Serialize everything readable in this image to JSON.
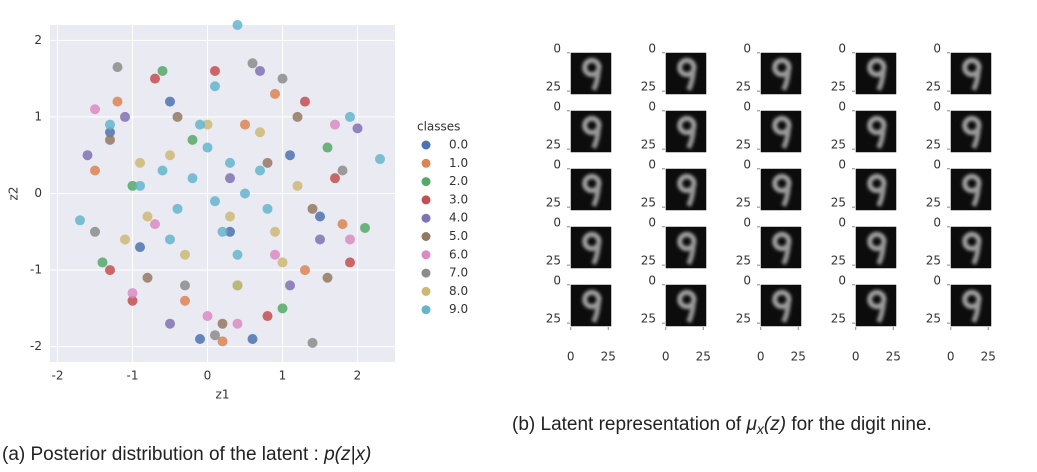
{
  "chart_data": [
    {
      "type": "scatter",
      "xlabel": "z1",
      "ylabel": "z2",
      "xlim": [
        -2.1,
        2.5
      ],
      "ylim": [
        -2.2,
        2.2
      ],
      "xticks": [
        -2,
        -1,
        0,
        1,
        2
      ],
      "yticks": [
        -2,
        -1,
        0,
        1,
        2
      ],
      "grid": true,
      "legend_title": "classes",
      "legend": "right",
      "series": [
        {
          "name": "0.0",
          "color": "#4c72b0",
          "x": [
            -1.3,
            0.6,
            -0.1,
            1.1,
            -0.5,
            0.3,
            -0.9,
            1.5
          ],
          "values": [
            0.8,
            -1.9,
            -1.9,
            0.5,
            1.2,
            -0.5,
            -0.7,
            -0.3
          ]
        },
        {
          "name": "1.0",
          "color": "#dd8452",
          "x": [
            0.2,
            1.8,
            -1.2,
            0.9,
            -0.3,
            1.3,
            -1.5,
            0.5
          ],
          "values": [
            -1.93,
            -0.4,
            1.2,
            1.3,
            -1.4,
            -1.0,
            0.3,
            0.9
          ]
        },
        {
          "name": "2.0",
          "color": "#55a868",
          "x": [
            2.1,
            -0.6,
            1.6,
            -1.4,
            0.4,
            -0.2,
            1.0,
            -1.0
          ],
          "values": [
            -0.45,
            1.6,
            0.6,
            -0.9,
            -1.2,
            0.7,
            -1.5,
            0.1
          ]
        },
        {
          "name": "3.0",
          "color": "#c44e52",
          "x": [
            -1.3,
            1.7,
            0.8,
            -0.7,
            1.3,
            -1.0,
            0.1,
            1.9
          ],
          "values": [
            -1.0,
            0.2,
            -1.6,
            1.5,
            1.2,
            -1.4,
            1.6,
            -0.9
          ]
        },
        {
          "name": "4.0",
          "color": "#8172b3",
          "x": [
            2.0,
            -1.6,
            0.7,
            -0.5,
            1.5,
            -1.1,
            0.3,
            1.1
          ],
          "values": [
            0.85,
            0.5,
            1.6,
            -1.7,
            -0.6,
            1.0,
            0.2,
            -1.2
          ]
        },
        {
          "name": "5.0",
          "color": "#937860",
          "x": [
            1.2,
            -0.8,
            1.6,
            -1.3,
            0.2,
            0.8,
            -0.4,
            1.4
          ],
          "values": [
            1.0,
            -1.1,
            -1.1,
            0.7,
            -1.7,
            0.4,
            1.0,
            -0.2
          ]
        },
        {
          "name": "6.0",
          "color": "#da8bc3",
          "x": [
            0.4,
            -1.0,
            1.7,
            -1.5,
            0.0,
            1.9,
            -0.7,
            0.9
          ],
          "values": [
            -1.7,
            -1.3,
            0.9,
            1.1,
            -1.6,
            -0.6,
            -0.4,
            -0.8
          ]
        },
        {
          "name": "7.0",
          "color": "#8c8c8c",
          "x": [
            1.4,
            -1.2,
            0.1,
            -1.5,
            1.0,
            1.8,
            -0.3,
            0.6
          ],
          "values": [
            -1.95,
            1.65,
            -1.85,
            -0.5,
            1.5,
            0.3,
            -1.2,
            1.7
          ]
        },
        {
          "name": "8.0",
          "color": "#ccb974",
          "x": [
            -0.8,
            0.9,
            -0.5,
            1.2,
            0.4,
            -1.1,
            0.0,
            0.7,
            -0.3,
            1.0,
            -0.9,
            0.3
          ],
          "values": [
            -0.3,
            -0.5,
            0.5,
            0.1,
            -1.2,
            -0.6,
            0.9,
            0.8,
            -0.8,
            -0.9,
            0.4,
            -0.3
          ]
        },
        {
          "name": "9.0",
          "color": "#64b5cd",
          "x": [
            -1.7,
            0.4,
            2.3,
            -0.2,
            0.1,
            0.3,
            -0.4,
            0.5,
            0.0,
            -0.6,
            0.2,
            0.7,
            -0.1,
            0.4,
            -0.5,
            0.8,
            -0.9,
            0.1,
            1.9,
            -1.3
          ],
          "values": [
            -0.35,
            2.2,
            0.45,
            0.2,
            -0.1,
            0.4,
            -0.2,
            0.0,
            0.6,
            0.3,
            -0.5,
            0.3,
            0.9,
            -0.8,
            -0.6,
            -0.2,
            0.1,
            1.4,
            1.0,
            0.9
          ]
        }
      ],
      "caption": [
        "(a) Posterior distribution of the latent : ",
        "p(z|x)"
      ]
    },
    {
      "type": "image-grid",
      "rows": 5,
      "cols": 5,
      "xlim": [
        -0.5,
        27.5
      ],
      "ylim": [
        27.5,
        -0.5
      ],
      "xticks": [
        0,
        25
      ],
      "yticks": [
        0,
        25
      ],
      "caption": [
        "(b) Latent representation of ",
        "μ",
        "x",
        "(z)",
        " for the digit nine."
      ]
    }
  ]
}
